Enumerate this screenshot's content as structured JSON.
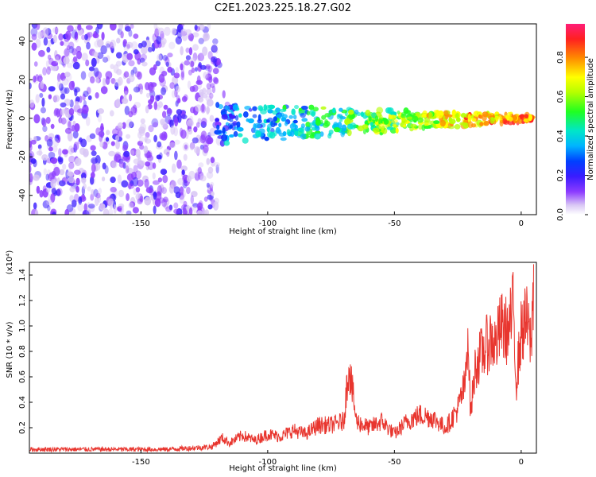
{
  "figure": {
    "title": "C2E1.2023.225.18.27.G02"
  },
  "chart_data": [
    {
      "type": "heatmap",
      "xlabel": "Height of straight line (km)",
      "ylabel": "Frequency (Hz)",
      "xlim": [
        -194,
        6
      ],
      "ylim": [
        -50,
        49
      ],
      "xticks": [
        -150,
        -100,
        -50,
        0
      ],
      "yticks": [
        -40,
        -20,
        0,
        20,
        40
      ],
      "colorbar": {
        "label": "Normalized spectral amplitude",
        "range": [
          0,
          0.97
        ],
        "ticks": [
          0.0,
          0.2,
          0.4,
          0.6,
          0.8
        ],
        "colors": [
          "#ffffff",
          "#d9c7f5",
          "#8c3bff",
          "#3a1cff",
          "#0040ff",
          "#00b4ff",
          "#00e6c8",
          "#20ff20",
          "#b4ff00",
          "#ffff00",
          "#ff8c00",
          "#ff2020",
          "#ff1e78"
        ]
      },
      "features": [
        {
          "name": "noise region",
          "x_range": [
            -194,
            -120
          ],
          "freq_range": [
            -50,
            49
          ],
          "amplitude": [
            0.05,
            0.25
          ]
        },
        {
          "name": "signal trace",
          "x_range": [
            -120,
            5
          ],
          "freq_start": -3,
          "freq_end": 0,
          "amplitude": [
            0.2,
            0.9
          ]
        }
      ]
    },
    {
      "type": "line",
      "xlabel": "Height of straight line (km)",
      "ylabel": "SNR (10 * v/v)",
      "yscale_label": "(x10⁴)",
      "xlim": [
        -194,
        6
      ],
      "ylim": [
        0,
        1.5
      ],
      "xticks": [
        -150,
        -100,
        -50,
        0
      ],
      "yticks": [
        0.2,
        0.4,
        0.6,
        0.8,
        1.0,
        1.2,
        1.4
      ],
      "color": "#e8352e",
      "series": [
        {
          "x": [
            -194,
            -180,
            -170,
            -160,
            -150,
            -140,
            -130,
            -122,
            -118,
            -115,
            -110,
            -105,
            -100,
            -95,
            -90,
            -85,
            -80,
            -75,
            -70,
            -68,
            -65,
            -60,
            -55,
            -50,
            -45,
            -40,
            -35,
            -30,
            -28,
            -25,
            -22,
            -21,
            -20,
            -18,
            -15,
            -12,
            -10,
            -8,
            -5,
            -3,
            -2,
            0,
            2,
            4,
            5
          ],
          "y": [
            0.03,
            0.03,
            0.03,
            0.03,
            0.03,
            0.03,
            0.04,
            0.05,
            0.12,
            0.08,
            0.14,
            0.1,
            0.15,
            0.13,
            0.18,
            0.15,
            0.22,
            0.22,
            0.25,
            0.7,
            0.25,
            0.2,
            0.25,
            0.15,
            0.25,
            0.3,
            0.28,
            0.2,
            0.25,
            0.35,
            0.55,
            1.0,
            0.3,
            0.7,
            0.8,
            0.9,
            0.85,
            1.0,
            0.95,
            1.15,
            0.55,
            0.95,
            1.05,
            0.85,
            1.45
          ]
        }
      ]
    }
  ]
}
